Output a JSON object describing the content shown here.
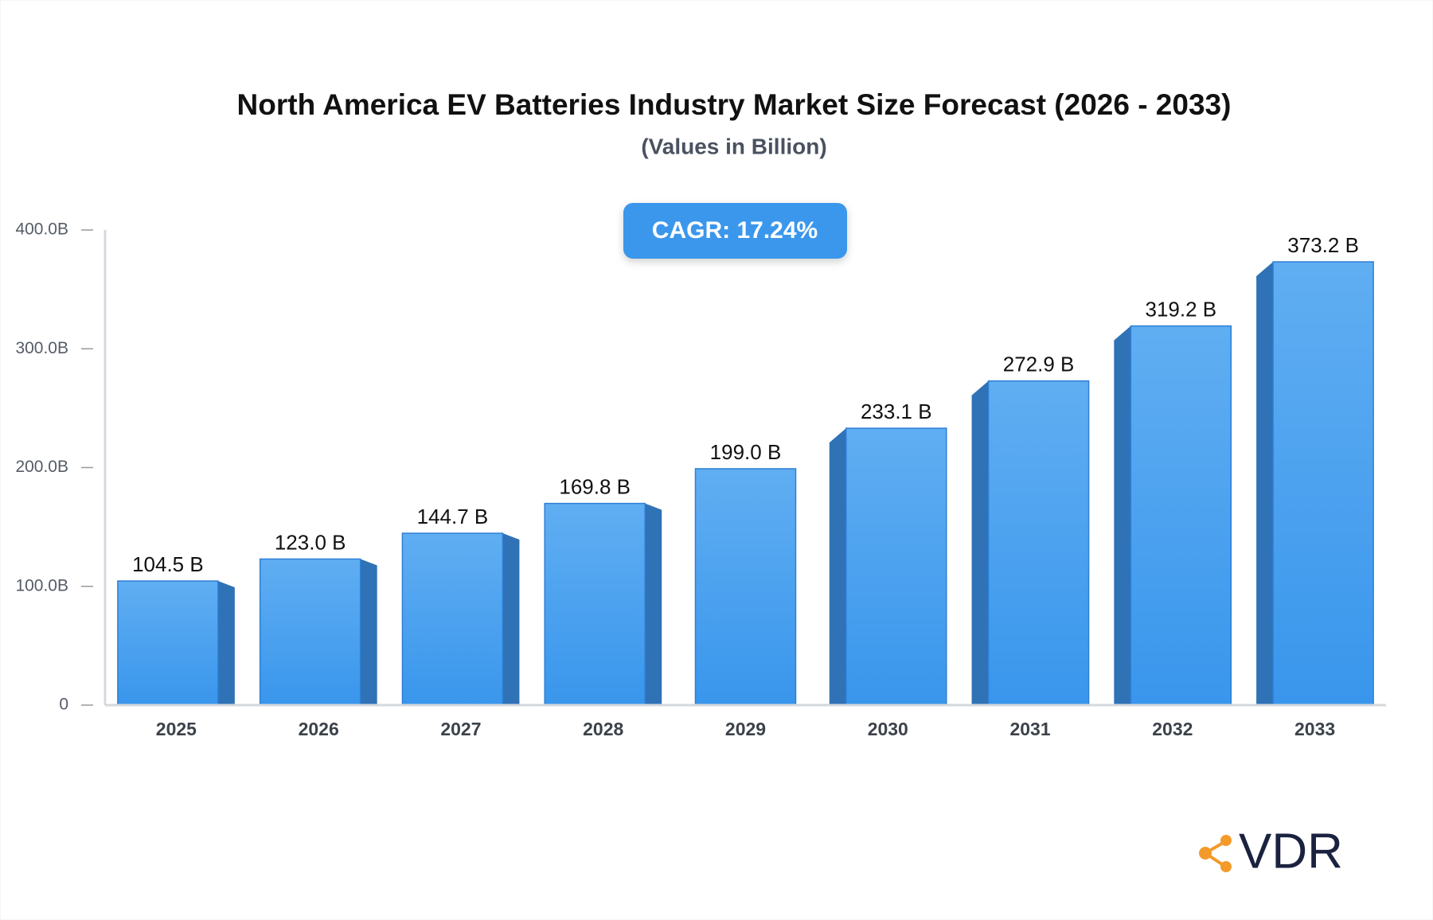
{
  "chart_data": {
    "type": "bar",
    "title": "North America EV Batteries Industry Market Size Forecast (2026 - 2033)",
    "subtitle": "(Values in Billion)",
    "annotation": "CAGR: 17.24%",
    "categories": [
      "2025",
      "2026",
      "2027",
      "2028",
      "2029",
      "2030",
      "2031",
      "2032",
      "2033"
    ],
    "values": [
      104.5,
      123.0,
      144.7,
      169.8,
      199.0,
      233.1,
      272.9,
      319.2,
      373.2
    ],
    "value_labels": [
      "104.5 B",
      "123.0 B",
      "144.7 B",
      "169.8 B",
      "199.0 B",
      "233.1 B",
      "272.9 B",
      "319.2 B",
      "373.2 B"
    ],
    "color": "#4aa0ee",
    "ylim": [
      0,
      400
    ],
    "yticks": [
      0,
      {
        "value": 100,
        "label": "100.0B"
      },
      {
        "value": 200,
        "label": "200.0B"
      },
      {
        "value": 300,
        "label": "300.0B"
      },
      {
        "value": 400,
        "label": "400.0B"
      }
    ],
    "grid": false
  },
  "logo": "VDR"
}
